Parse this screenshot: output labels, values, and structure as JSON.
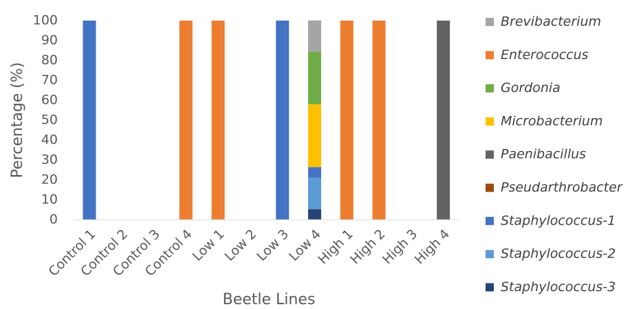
{
  "chart_data": {
    "type": "stacked-bar",
    "x_label": "Beetle Lines",
    "y_label": "Percentage (%)",
    "categories": [
      "Control 1",
      "Control 2",
      "Control 3",
      "Control 4",
      "Low 1",
      "Low 2",
      "Low 3",
      "Low 4",
      "High 1",
      "High 2",
      "High 3",
      "High 4"
    ],
    "series": [
      {
        "name": "Brevibacterium",
        "color": "#a5a5a5",
        "values": [
          0,
          0,
          0,
          0,
          0,
          0,
          0,
          15.8,
          0,
          0,
          0,
          0
        ]
      },
      {
        "name": "Enterococcus",
        "color": "#ed7d31",
        "values": [
          0,
          0,
          0,
          100,
          100,
          0,
          0,
          0,
          100,
          100,
          0,
          0
        ]
      },
      {
        "name": "Gordonia",
        "color": "#70ad47",
        "values": [
          0,
          0,
          0,
          0,
          0,
          0,
          0,
          26.3,
          0,
          0,
          0,
          0
        ]
      },
      {
        "name": "Microbacterium",
        "color": "#ffc000",
        "values": [
          0,
          0,
          0,
          0,
          0,
          0,
          0,
          31.6,
          0,
          0,
          0,
          0
        ]
      },
      {
        "name": "Paenibacillus",
        "color": "#636363",
        "values": [
          0,
          0,
          0,
          0,
          0,
          0,
          0,
          0,
          0,
          0,
          0,
          100
        ]
      },
      {
        "name": "Pseudarthrobacter",
        "color": "#9e480e",
        "values": [
          0,
          0,
          0,
          0,
          0,
          0,
          0,
          0,
          0,
          0,
          0,
          0
        ]
      },
      {
        "name": "Staphylococcus-1",
        "color": "#4472c4",
        "values": [
          100,
          0,
          0,
          0,
          0,
          0,
          100,
          5.3,
          0,
          0,
          0,
          0
        ]
      },
      {
        "name": "Staphylococcus-2",
        "color": "#5b9bd5",
        "values": [
          0,
          0,
          0,
          0,
          0,
          0,
          0,
          15.8,
          0,
          0,
          0,
          0
        ]
      },
      {
        "name": "Staphylococcus-3",
        "color": "#264478",
        "values": [
          0,
          0,
          0,
          0,
          0,
          0,
          0,
          5.3,
          0,
          0,
          0,
          0
        ]
      }
    ],
    "ylim": [
      0,
      100
    ],
    "yticks": [
      0,
      10,
      20,
      30,
      40,
      50,
      60,
      70,
      80,
      90,
      100
    ],
    "grid": false,
    "legend": "right"
  }
}
